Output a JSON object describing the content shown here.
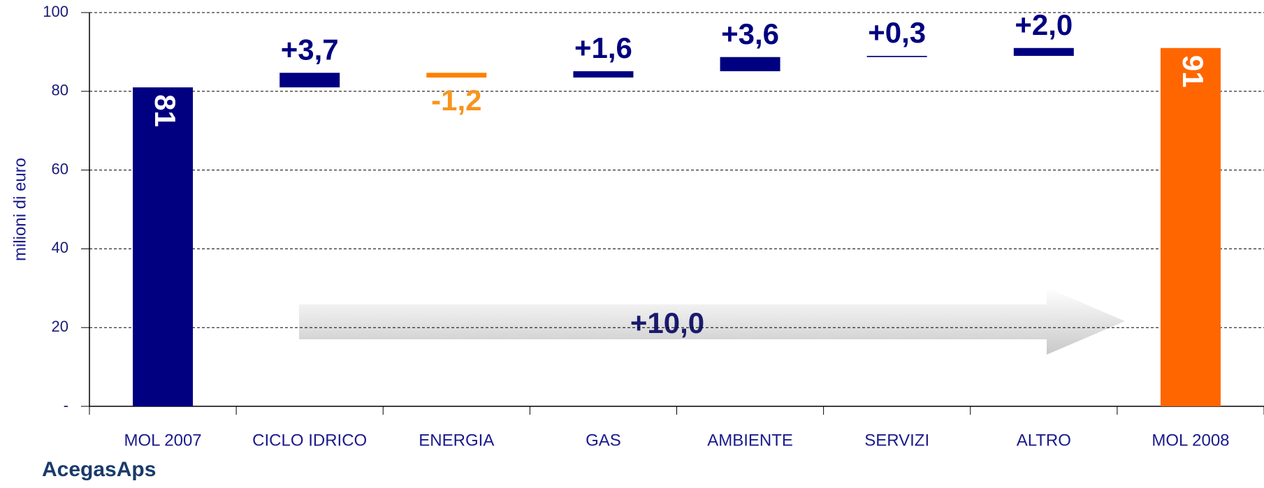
{
  "chart_data": {
    "type": "waterfall",
    "y_axis_label": "milioni di euro",
    "categories": [
      "MOL 2007",
      "CICLO IDRICO",
      "ENERGIA",
      "GAS",
      "AMBIENTE",
      "SERVIZI",
      "ALTRO",
      "MOL 2008"
    ],
    "values": [
      81,
      3.7,
      -1.2,
      1.6,
      3.6,
      0.3,
      2.0,
      91
    ],
    "value_labels": [
      "81",
      "+3,7",
      "-1,2",
      "+1,6",
      "+3,6",
      "+0,3",
      "+2,0",
      "91"
    ],
    "totals": [
      true,
      false,
      false,
      false,
      false,
      false,
      false,
      true
    ],
    "colors": [
      "#000080",
      "#000080",
      "#ff8000",
      "#000080",
      "#000080",
      "#000080",
      "#000080",
      "#ff6600"
    ],
    "label_colors": [
      "#ffffff",
      "#000080",
      "#f7941d",
      "#000080",
      "#000080",
      "#000080",
      "#000080",
      "#ffffff"
    ],
    "ylim": [
      0,
      100
    ],
    "yticks": [
      {
        "value": 0,
        "label": "-"
      },
      20,
      40,
      60,
      80,
      100
    ],
    "grid": true,
    "annotation": "+10,0",
    "logo": "AcegasAps"
  }
}
